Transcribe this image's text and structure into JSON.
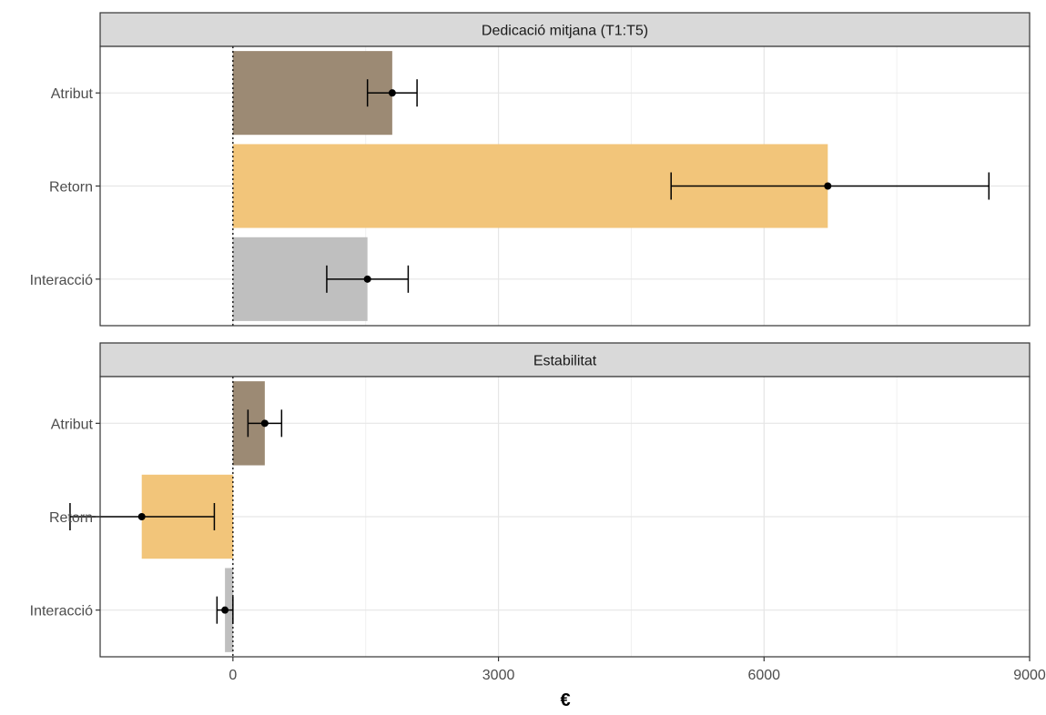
{
  "chart_data": {
    "type": "bar",
    "orientation": "horizontal",
    "xlabel": "€",
    "xlim": [
      -1500,
      9000
    ],
    "xticks": [
      0,
      3000,
      6000,
      9000
    ],
    "xtick_labels": [
      "0",
      "3000",
      "6000",
      "9000"
    ],
    "categories": [
      "Atribut",
      "Retorn",
      "Interacció"
    ],
    "category_colors": [
      "#9c8a74",
      "#f2c57a",
      "#bfbfbf"
    ],
    "grid": true,
    "zero_line": "dotted",
    "legend": "none",
    "panels": [
      {
        "strip_label": "Dedicació mitjana (T1:T5)",
        "values": [
          1800,
          6720,
          1520
        ],
        "error_low": [
          1520,
          4950,
          1060
        ],
        "error_high": [
          2080,
          8540,
          1980
        ]
      },
      {
        "strip_label": "Estabilitat",
        "values": [
          360,
          -1030,
          -90
        ],
        "error_low": [
          170,
          -1840,
          -180
        ],
        "error_high": [
          550,
          -210,
          0
        ]
      }
    ]
  }
}
